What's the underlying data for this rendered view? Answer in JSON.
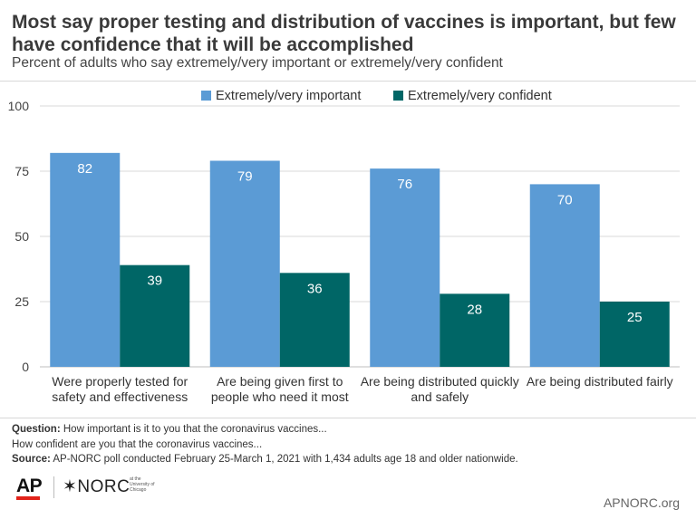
{
  "header": {
    "title": "Most say proper testing and distribution of vaccines is important, but few have confidence that it will be accomplished",
    "subtitle": "Percent of adults who say extremely/very important or extremely/very confident"
  },
  "colors": {
    "important": "#5b9bd5",
    "confident": "#006666",
    "grid": "#d9d9d9",
    "ap_red": "#e2231a"
  },
  "chart_data": {
    "type": "bar",
    "categories": [
      [
        "Were properly tested for",
        "safety and effectiveness"
      ],
      [
        "Are being given first to",
        "people who need it most"
      ],
      [
        "Are being distributed quickly",
        "and safely"
      ],
      [
        "Are being distributed fairly"
      ]
    ],
    "series": [
      {
        "name": "Extremely/very important",
        "values": [
          82,
          79,
          76,
          70
        ]
      },
      {
        "name": "Extremely/very confident",
        "values": [
          39,
          36,
          28,
          25
        ]
      }
    ],
    "ylim": [
      0,
      100
    ],
    "yticks": [
      0,
      25,
      50,
      75,
      100
    ],
    "legend": "top-center",
    "grid": true
  },
  "notes": {
    "question_label": "Question:",
    "question_line1": "How important is it to you that the coronavirus vaccines...",
    "question_line2": "How confident are you that the coronavirus vaccines...",
    "source_label": "Source:",
    "source_text": "AP-NORC poll conducted February 25-March 1, 2021 with 1,434 adults age 18 and older nationwide."
  },
  "footer": {
    "ap_logo": "AP",
    "norc_logo": "✶NORC",
    "norc_small": "at the University of Chicago",
    "site": "APNORC.org"
  }
}
